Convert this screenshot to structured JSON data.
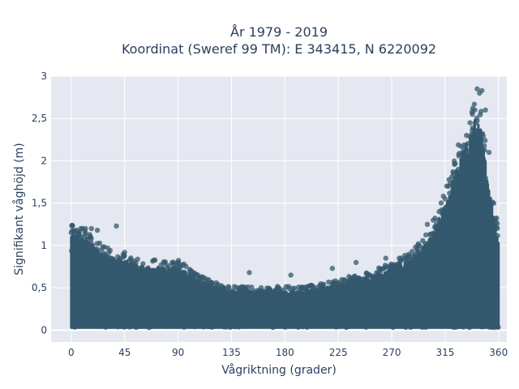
{
  "chart_data": {
    "type": "scatter",
    "title_line1": "År 1979 - 2019",
    "title_line2": "Koordinat (Sweref 99 TM): E 343415, N 6220092",
    "xlabel": "Vågriktning (grader)",
    "ylabel": "Signifikant våghöjd (m)",
    "xlim": [
      -17,
      367
    ],
    "ylim": [
      -0.14,
      3
    ],
    "x_ticks": [
      0,
      45,
      90,
      135,
      180,
      225,
      270,
      315,
      360
    ],
    "x_tick_labels": [
      "0",
      "45",
      "90",
      "135",
      "180",
      "225",
      "270",
      "315",
      "360"
    ],
    "y_ticks": [
      0,
      0.5,
      1,
      1.5,
      2,
      2.5,
      3
    ],
    "y_tick_labels": [
      "0",
      "0,5",
      "1",
      "1,5",
      "2",
      "2,5",
      "3"
    ],
    "grid": true,
    "marker_color": "#34586e",
    "plot_bg": "#e5e8f0",
    "envelope": {
      "x": [
        0,
        10,
        20,
        30,
        45,
        60,
        75,
        90,
        105,
        120,
        135,
        150,
        165,
        180,
        195,
        210,
        225,
        240,
        255,
        270,
        285,
        295,
        305,
        315,
        322,
        330,
        335,
        340,
        345,
        350,
        355,
        360
      ],
      "y_max": [
        1.1,
        1.05,
        0.95,
        0.85,
        0.8,
        0.72,
        0.72,
        0.72,
        0.58,
        0.5,
        0.45,
        0.45,
        0.45,
        0.45,
        0.45,
        0.48,
        0.52,
        0.58,
        0.62,
        0.7,
        0.8,
        0.92,
        1.1,
        1.45,
        1.75,
        2.05,
        2.2,
        2.4,
        2.3,
        1.85,
        1.4,
        1.05
      ]
    },
    "series": [
      {
        "x": [
          0,
          3,
          7,
          12,
          17,
          22,
          38,
          45,
          85,
          95,
          150,
          185,
          220,
          240,
          265,
          290,
          300,
          305,
          310,
          315,
          318,
          322,
          326,
          330,
          333,
          336,
          338,
          340,
          342,
          344,
          346,
          349,
          352,
          356,
          359
        ],
        "y": [
          1.15,
          1.17,
          1.16,
          1.2,
          1.2,
          1.18,
          1.23,
          0.92,
          0.8,
          0.78,
          0.68,
          0.65,
          0.73,
          0.8,
          0.85,
          0.98,
          1.25,
          1.3,
          1.4,
          1.55,
          1.7,
          1.85,
          1.9,
          2.0,
          2.3,
          2.45,
          2.55,
          2.6,
          2.85,
          2.8,
          2.83,
          2.6,
          2.1,
          1.5,
          1.2
        ]
      }
    ]
  }
}
